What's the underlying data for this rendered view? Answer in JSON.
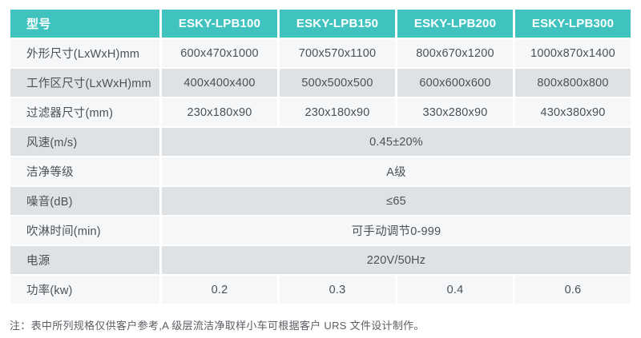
{
  "accent_color": "#40c3bf",
  "row_colors": {
    "light": "#f6f7f8",
    "gray": "#dfe2e5"
  },
  "table": {
    "header": [
      "型号",
      "ESKY-LPB100",
      "ESKY-LPB150",
      "ESKY-LPB200",
      "ESKY-LPB300"
    ],
    "rows": [
      {
        "label": "外形尺寸(LxWxH)mm",
        "values": [
          "600x470x1000",
          "700x570x1100",
          "800x670x1200",
          "1000x870x1400"
        ]
      },
      {
        "label": "工作区尺寸(LxWxH)mm",
        "values": [
          "400x400x400",
          "500x500x500",
          "600x600x600",
          "800x800x800"
        ]
      },
      {
        "label": "过滤器尺寸(mm)",
        "values": [
          "230x180x90",
          "230x180x90",
          "330x280x90",
          "430x380x90"
        ]
      },
      {
        "label": "风速(m/s)",
        "merged": "0.45±20%"
      },
      {
        "label": "洁净等级",
        "merged": "A级"
      },
      {
        "label": "噪音(dB)",
        "merged": "≤65"
      },
      {
        "label": "吹淋时间(min)",
        "merged": "可手动调节0-999"
      },
      {
        "label": "电源",
        "merged": "220V/50Hz"
      },
      {
        "label": "功率(kw)",
        "values": [
          "0.2",
          "0.3",
          "0.4",
          "0.6"
        ]
      }
    ]
  },
  "note": "注：表中所列规格仅供客户参考,A 级层流洁净取样小车可根据客户 URS 文件设计制作。"
}
